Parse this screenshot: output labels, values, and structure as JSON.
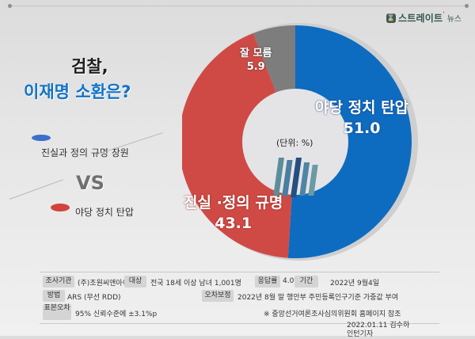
{
  "header": {
    "logo_mark": "⌛",
    "logo_text": "스트레이트",
    "logo_sub": "뉴스",
    "logo_tick": "'"
  },
  "title": {
    "line1": "검찰,",
    "line2": "이재명 소환은?"
  },
  "legend": {
    "item1": {
      "label": "진실과 정의 규명 창원",
      "color": "#3c6fca"
    },
    "vs": "VS",
    "item2": {
      "label": "야당 정치 탄압",
      "color": "#d2433b"
    }
  },
  "chart_data": {
    "type": "pie",
    "variant": "donut",
    "title": "검찰, 이재명 소환은?",
    "unit_label": "(단위: %)",
    "categories": [
      "야당 정치 탄압",
      "진실 ·정의 규명",
      "잘 모름"
    ],
    "values": [
      51.0,
      43.1,
      5.9
    ],
    "colors": [
      "#0d6cc0",
      "#d04a45",
      "#7d7d7d"
    ],
    "start_angle": "12 o'clock, clockwise"
  },
  "labels": {
    "blue_name": "야당 정치 탄압",
    "blue_value": "51.0",
    "red_name": "진실 ·정의 규명",
    "red_value": "43.1",
    "gray_name": "잘 모름",
    "gray_value": "5.9",
    "unit": "(단위: %)"
  },
  "survey": {
    "org_tag": "조사기관",
    "org": "(주)조원씨앤아이",
    "target_tag": "대상",
    "target": "전국 18세 이상 남녀 1,001명",
    "rate_tag": "응답률",
    "rate": "4.0%",
    "period_tag": "기간",
    "period": "2022년 9월4일",
    "method_tag": "방법",
    "method": "ARS (무선 RDD)",
    "weight_tag": "오차보정",
    "weight": "2022년 8월 말 행안부 주민등록인구기준 가중값 부여",
    "error_tag": "표본오차",
    "error": "95% 신뢰수준에 ±3.1%p",
    "note": "※ 중앙선거여론조사심의위원회 홈페이지 참조"
  },
  "credit": {
    "line1": "2022.01.11 김수하",
    "line2": "인턴기자"
  }
}
